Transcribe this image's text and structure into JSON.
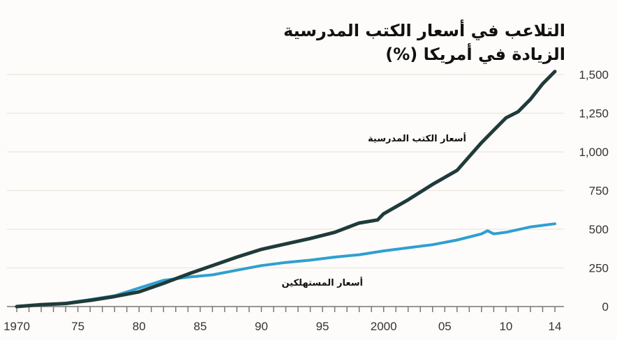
{
  "chart_data": {
    "type": "line",
    "title": "التلاعب في أسعار الكتب المدرسية",
    "subtitle": "الزيادة في أمريكا (%)",
    "x_ticks": [
      1970,
      1975,
      1980,
      1985,
      1990,
      1995,
      2000,
      2005,
      2010,
      2014
    ],
    "x_tick_labels": [
      "1970",
      "75",
      "80",
      "85",
      "90",
      "95",
      "2000",
      "05",
      "10",
      "14"
    ],
    "y_ticks": [
      0,
      250,
      500,
      750,
      1000,
      1250,
      1500
    ],
    "y_tick_labels": [
      "0",
      "250",
      "500",
      "750",
      "1,000",
      "1,250",
      "1,500"
    ],
    "xlim": [
      1970,
      2014
    ],
    "ylim": [
      0,
      1500
    ],
    "y_axis_side": "right",
    "grid": true,
    "series": [
      {
        "name": "أسعار الكتب المدرسية",
        "color": "#1f3b3a",
        "x": [
          1970,
          1972,
          1974,
          1976,
          1978,
          1980,
          1982,
          1984,
          1986,
          1988,
          1990,
          1992,
          1994,
          1996,
          1998,
          1999.5,
          2000,
          2002,
          2004,
          2006,
          2008,
          2009,
          2010,
          2011,
          2012,
          2013,
          2014
        ],
        "y": [
          0,
          12,
          20,
          40,
          65,
          95,
          150,
          210,
          265,
          320,
          370,
          405,
          440,
          480,
          540,
          560,
          600,
          690,
          790,
          880,
          1060,
          1140,
          1220,
          1260,
          1340,
          1440,
          1520
        ]
      },
      {
        "name": "أسعار المستهلكين",
        "color": "#2f9fd0",
        "x": [
          1970,
          1972,
          1974,
          1976,
          1978,
          1980,
          1982,
          1984,
          1986,
          1988,
          1990,
          1992,
          1994,
          1996,
          1998,
          2000,
          2002,
          2004,
          2006,
          2008,
          2008.5,
          2009,
          2010,
          2012,
          2014
        ],
        "y": [
          0,
          10,
          22,
          45,
          70,
          120,
          170,
          190,
          205,
          235,
          265,
          285,
          300,
          320,
          335,
          360,
          380,
          400,
          430,
          470,
          490,
          470,
          480,
          515,
          535
        ]
      }
    ]
  }
}
